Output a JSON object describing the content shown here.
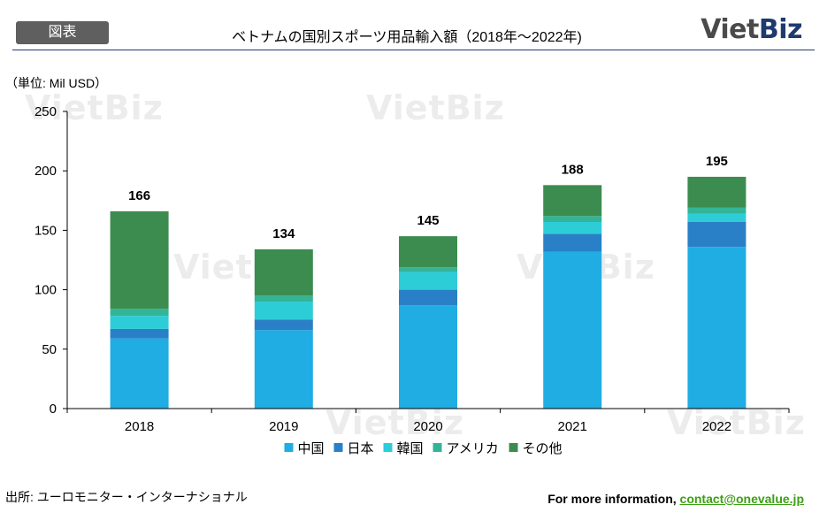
{
  "header": {
    "tag": "図表",
    "title": "ベトナムの国別スポーツ用品輸入額（2018年～2022年)",
    "logo_left": "Viet",
    "logo_right": "Biz"
  },
  "watermark": "VietBiz",
  "unit_label": "（単位: Mil USD）",
  "chart_data": {
    "type": "bar",
    "stacked": true,
    "title": "ベトナムの国別スポーツ用品輸入額（2018年～2022年)",
    "ylabel": "Mil USD",
    "ylim": [
      0,
      250
    ],
    "yticks": [
      0,
      50,
      100,
      150,
      200,
      250
    ],
    "categories": [
      "2018",
      "2019",
      "2020",
      "2021",
      "2022"
    ],
    "series": [
      {
        "name": "中国",
        "color": "#1fade3",
        "values": [
          59,
          66,
          87,
          132,
          136
        ]
      },
      {
        "name": "日本",
        "color": "#2a80c6",
        "values": [
          8,
          9,
          13,
          15,
          21
        ]
      },
      {
        "name": "韓国",
        "color": "#2dcdd8",
        "values": [
          11,
          15,
          15,
          10,
          7
        ]
      },
      {
        "name": "アメリカ",
        "color": "#33b496",
        "values": [
          6,
          5,
          4,
          5,
          5
        ]
      },
      {
        "name": "その他",
        "color": "#3c8c50",
        "values": [
          82,
          39,
          26,
          26,
          26
        ]
      }
    ],
    "totals": [
      "166",
      "134",
      "145",
      "188",
      "195"
    ],
    "legend_position": "bottom"
  },
  "footer": {
    "source": "出所: ユーロモニター・インターナショナル",
    "info_prefix": "For more information, ",
    "info_link": "contact@onevalue.jp"
  }
}
